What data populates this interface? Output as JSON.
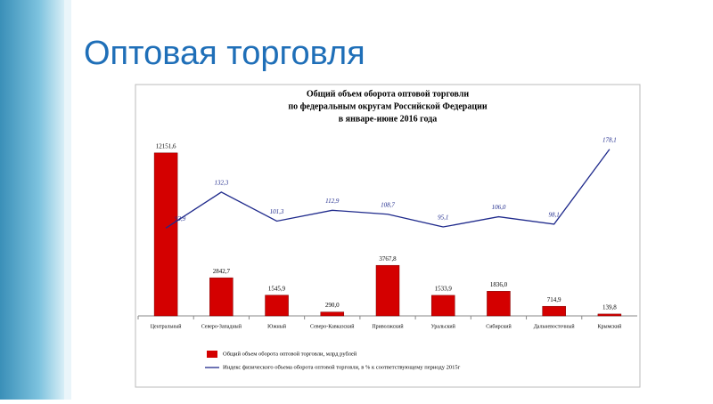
{
  "heading": "Оптовая торговля",
  "chart_data": {
    "type": "bar_line",
    "title": [
      "Общий объем оборота оптовой торговли",
      "по федеральным округам Российской Федерации",
      "в январе-июне 2016 года"
    ],
    "categories": [
      "Центральный",
      "Северо-Западный",
      "Южный",
      "Северо-Кавказский",
      "Приволжский",
      "Уральский",
      "Сибирский",
      "Дальневосточный",
      "Крымский"
    ],
    "ylim": [
      0,
      13600
    ],
    "y2lim": [
      0,
      195
    ],
    "legend_position": "bottom",
    "series": [
      {
        "name": "Общий объем оборота оптовой торговли, млрд рублей",
        "type": "bar",
        "color": "#d40000",
        "values": [
          12151.6,
          2842.7,
          1545.9,
          290.0,
          3767.8,
          1533.9,
          1836.0,
          714.9,
          139.8
        ],
        "value_labels": [
          "12151,6",
          "2842,7",
          "1545,9",
          "290,0",
          "3767,8",
          "1533,9",
          "1836,0",
          "714,9",
          "139,8"
        ]
      },
      {
        "name": "Индекс физического объема оборота оптовой торговли, в % к соответствующему периоду 2015г",
        "type": "line",
        "axis": "y2",
        "color": "#1f2a8c",
        "values": [
          93.9,
          132.3,
          101.3,
          112.9,
          108.7,
          95.1,
          106.0,
          98.1,
          178.1
        ],
        "value_labels": [
          "93,9",
          "132,3",
          "101,3",
          "112,9",
          "108,7",
          "95,1",
          "106,0",
          "98,1",
          "178,1"
        ]
      }
    ]
  }
}
